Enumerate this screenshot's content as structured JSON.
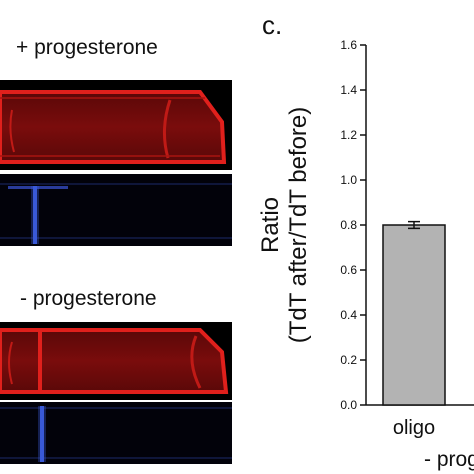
{
  "panel_label": "c.",
  "conditions": {
    "plus": "+ progesterone",
    "minus": "- progesterone"
  },
  "colors": {
    "tdt_red": "#e0201c",
    "blue_channel": "#3a5ad8",
    "bar_fill": "#b3b3b3",
    "background_black": "#000000"
  },
  "chart_data": {
    "type": "bar",
    "ylabel": "Ratio\n(TdT after/TdT before)",
    "ylim": [
      0,
      1.6
    ],
    "ytick_labels": [
      "0.0",
      "0.2",
      "0.4",
      "0.6",
      "0.8",
      "1.0",
      "1.2",
      "1.4",
      "1.6"
    ],
    "categories": [
      "oligo"
    ],
    "values": [
      0.8
    ],
    "errors": [
      0.015
    ],
    "group_label_partial": "- prog",
    "grid": false
  }
}
